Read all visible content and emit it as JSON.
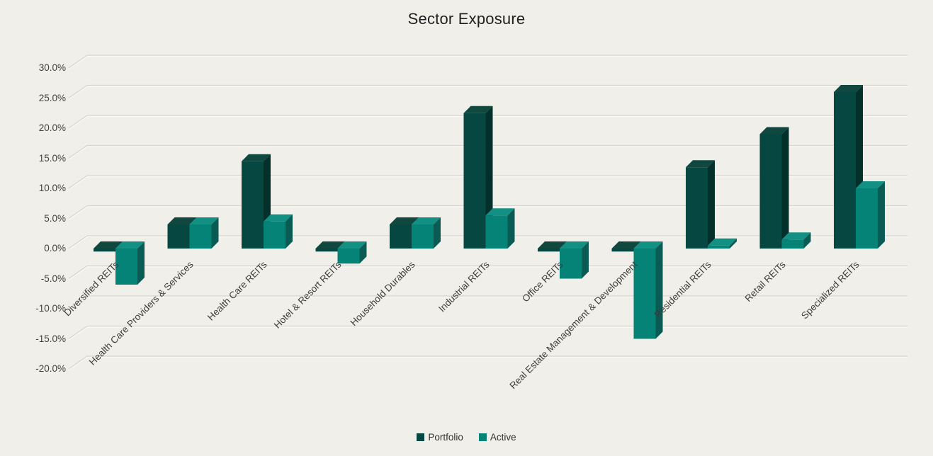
{
  "chart_data": {
    "type": "bar",
    "variant": "3d-clustered-column",
    "title": "Sector Exposure",
    "categories": [
      "Diversified REITs",
      "Health Care Providers & Services",
      "Health Care REITs",
      "Hotel & Resort REITs",
      "Household Durables",
      "Industrial REITs",
      "Office REITs",
      "Real Estate Management & Development",
      "Residential REITs",
      "Retail REITs",
      "Specialized REITs"
    ],
    "series": [
      {
        "name": "Portfolio",
        "values": [
          -0.5,
          4.0,
          14.5,
          -0.5,
          4.0,
          22.5,
          -0.5,
          -0.5,
          13.5,
          19.0,
          26.0
        ]
      },
      {
        "name": "Active",
        "values": [
          -6.0,
          4.0,
          4.5,
          -2.5,
          4.0,
          5.5,
          -5.0,
          -15.0,
          0.5,
          1.5,
          10.0
        ]
      }
    ],
    "y_axis": {
      "min": -20,
      "max": 30,
      "step": 5,
      "format": "percent",
      "ticks": [
        {
          "label": "30.0%",
          "value": 30
        },
        {
          "label": "25.0%",
          "value": 25
        },
        {
          "label": "20.0%",
          "value": 20
        },
        {
          "label": "15.0%",
          "value": 15
        },
        {
          "label": "10.0%",
          "value": 10
        },
        {
          "label": "5.0%",
          "value": 5
        },
        {
          "label": "0.0%",
          "value": 0
        },
        {
          "label": "-5.0%",
          "value": -5
        },
        {
          "label": "-10.0%",
          "value": -10
        },
        {
          "label": "-15.0%",
          "value": -15
        },
        {
          "label": "-20.0%",
          "value": -20
        }
      ]
    },
    "legend": {
      "position": "bottom",
      "entries": [
        "Portfolio",
        "Active"
      ]
    },
    "grid": true,
    "colors": {
      "portfolio_front": "#064741",
      "portfolio_side": "#04302b",
      "portfolio_top": "#10473f",
      "active_front": "#058376",
      "active_side": "#0a5b53",
      "active_top": "#129083",
      "background": "#f1efea",
      "gridline": "#d8d5d0",
      "gridline_highlight": "#fbfaf7",
      "label_text": "#3d3d3d",
      "title_text": "#212121"
    }
  }
}
